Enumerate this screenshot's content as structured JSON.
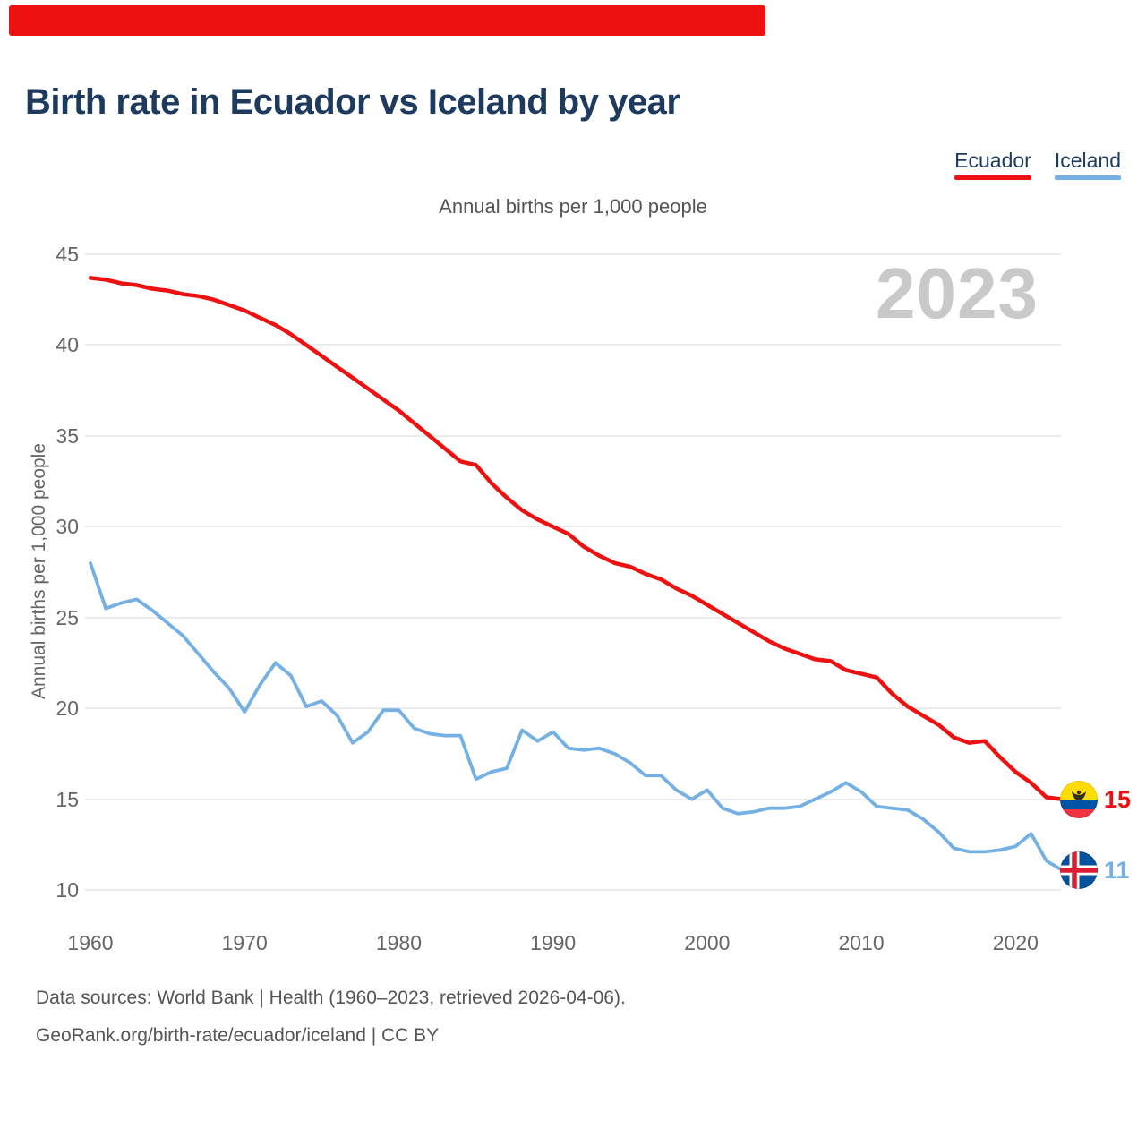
{
  "page": {
    "top_bar_color": "#ee1111"
  },
  "legend": [
    {
      "label": "Ecuador",
      "color": "#ee1111"
    },
    {
      "label": "Iceland",
      "color": "#74b0e4"
    }
  ],
  "chart_data": {
    "type": "line",
    "title": "Birth rate in Ecuador vs Iceland by year",
    "subtitle": "Annual births per 1,000 people",
    "ylabel": "Annual births per 1,000 people",
    "watermark": "2023",
    "grid": true,
    "legend_position": "top-right",
    "ylim": [
      10,
      45
    ],
    "y_ticks": [
      45,
      40,
      35,
      30,
      25,
      20,
      15,
      10
    ],
    "x_ticks": [
      1960,
      1970,
      1980,
      1990,
      2000,
      2010,
      2020
    ],
    "x": [
      1960,
      1961,
      1962,
      1963,
      1964,
      1965,
      1966,
      1967,
      1968,
      1969,
      1970,
      1971,
      1972,
      1973,
      1974,
      1975,
      1976,
      1977,
      1978,
      1979,
      1980,
      1981,
      1982,
      1983,
      1984,
      1985,
      1986,
      1987,
      1988,
      1989,
      1990,
      1991,
      1992,
      1993,
      1994,
      1995,
      1996,
      1997,
      1998,
      1999,
      2000,
      2001,
      2002,
      2003,
      2004,
      2005,
      2006,
      2007,
      2008,
      2009,
      2010,
      2011,
      2012,
      2013,
      2014,
      2015,
      2016,
      2017,
      2018,
      2019,
      2020,
      2021,
      2022,
      2023
    ],
    "series": [
      {
        "name": "Ecuador",
        "color": "#ee1111",
        "line_width": 4.5,
        "end_label": "15",
        "values": [
          43.7,
          43.6,
          43.4,
          43.3,
          43.1,
          43.0,
          42.8,
          42.7,
          42.5,
          42.2,
          41.9,
          41.5,
          41.1,
          40.6,
          40.0,
          39.4,
          38.8,
          38.2,
          37.6,
          37.0,
          36.4,
          35.7,
          35.0,
          34.3,
          33.6,
          33.4,
          32.4,
          31.6,
          30.9,
          30.4,
          30.0,
          29.6,
          28.9,
          28.4,
          28.0,
          27.8,
          27.4,
          27.1,
          26.6,
          26.2,
          25.7,
          25.2,
          24.7,
          24.2,
          23.7,
          23.3,
          23.0,
          22.7,
          22.6,
          22.1,
          21.9,
          21.7,
          20.8,
          20.1,
          19.6,
          19.1,
          18.4,
          18.1,
          18.2,
          17.3,
          16.5,
          15.9,
          15.1,
          15.0
        ]
      },
      {
        "name": "Iceland",
        "color": "#74b0e4",
        "line_width": 3.8,
        "end_label": "11",
        "values": [
          28.0,
          25.5,
          25.8,
          26.0,
          25.4,
          24.7,
          24.0,
          23.0,
          22.0,
          21.1,
          19.8,
          21.3,
          22.5,
          21.8,
          20.1,
          20.4,
          19.6,
          18.1,
          18.7,
          19.9,
          19.9,
          18.9,
          18.6,
          18.5,
          18.5,
          16.1,
          16.5,
          16.7,
          18.8,
          18.2,
          18.7,
          17.8,
          17.7,
          17.8,
          17.5,
          17.0,
          16.3,
          16.3,
          15.5,
          15.0,
          15.5,
          14.5,
          14.2,
          14.3,
          14.5,
          14.5,
          14.6,
          15.0,
          15.4,
          15.9,
          15.4,
          14.6,
          14.5,
          14.4,
          13.9,
          13.2,
          12.3,
          12.1,
          12.1,
          12.2,
          12.4,
          13.1,
          11.6,
          11.1
        ]
      }
    ]
  },
  "footer": {
    "line1": "Data sources: World Bank | Health (1960–2023, retrieved 2026-04-06).",
    "line2": "GeoRank.org/birth-rate/ecuador/iceland | CC BY"
  }
}
